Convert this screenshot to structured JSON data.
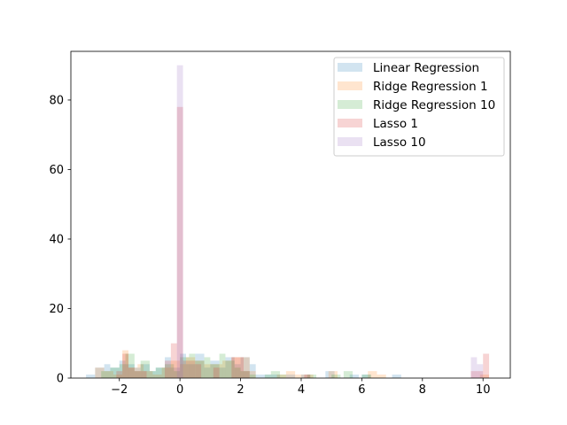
{
  "chart_data": {
    "type": "bar",
    "subtype": "overlaid-histogram",
    "title": "",
    "xlabel": "",
    "ylabel": "",
    "xlim": [
      -3.6,
      10.9
    ],
    "ylim": [
      0,
      94
    ],
    "xticks": [
      -2,
      0,
      2,
      4,
      6,
      8,
      10
    ],
    "xtick_labels": [
      "−2",
      "0",
      "2",
      "4",
      "6",
      "8",
      "10"
    ],
    "yticks": [
      0,
      20,
      40,
      60,
      80
    ],
    "ytick_labels": [
      "0",
      "20",
      "40",
      "60",
      "80"
    ],
    "grid": false,
    "legend_position": "top-right",
    "bar_opacity": 0.2,
    "series": [
      {
        "name": "Linear Regression",
        "color": "#1f77b4",
        "bins": [
          {
            "x0": -3.1,
            "x1": -2.8,
            "count": 1
          },
          {
            "x0": -2.8,
            "x1": -2.5,
            "count": 3
          },
          {
            "x0": -2.5,
            "x1": -2.3,
            "count": 4
          },
          {
            "x0": -2.3,
            "x1": -2.0,
            "count": 3
          },
          {
            "x0": -2.0,
            "x1": -1.8,
            "count": 5
          },
          {
            "x0": -1.8,
            "x1": -1.5,
            "count": 4
          },
          {
            "x0": -1.5,
            "x1": -1.3,
            "count": 3
          },
          {
            "x0": -1.3,
            "x1": -1.0,
            "count": 4
          },
          {
            "x0": -1.0,
            "x1": -0.8,
            "count": 2
          },
          {
            "x0": -0.8,
            "x1": -0.5,
            "count": 3
          },
          {
            "x0": -0.5,
            "x1": -0.3,
            "count": 6
          },
          {
            "x0": -0.3,
            "x1": 0.0,
            "count": 3
          },
          {
            "x0": 0.0,
            "x1": 0.2,
            "count": 7
          },
          {
            "x0": 0.2,
            "x1": 0.5,
            "count": 4
          },
          {
            "x0": 0.5,
            "x1": 0.8,
            "count": 7
          },
          {
            "x0": 0.8,
            "x1": 1.0,
            "count": 3
          },
          {
            "x0": 1.0,
            "x1": 1.3,
            "count": 5
          },
          {
            "x0": 1.3,
            "x1": 1.5,
            "count": 3
          },
          {
            "x0": 1.5,
            "x1": 1.8,
            "count": 6
          },
          {
            "x0": 1.8,
            "x1": 2.0,
            "count": 4
          },
          {
            "x0": 2.0,
            "x1": 2.3,
            "count": 6
          },
          {
            "x0": 2.3,
            "x1": 2.5,
            "count": 4
          },
          {
            "x0": 2.5,
            "x1": 2.8,
            "count": 1
          },
          {
            "x0": 2.8,
            "x1": 3.0,
            "count": 1
          },
          {
            "x0": 3.0,
            "x1": 3.3,
            "count": 1
          },
          {
            "x0": 3.5,
            "x1": 3.8,
            "count": 1
          },
          {
            "x0": 4.0,
            "x1": 4.3,
            "count": 1
          },
          {
            "x0": 4.8,
            "x1": 5.1,
            "count": 2
          },
          {
            "x0": 5.6,
            "x1": 5.9,
            "count": 1
          },
          {
            "x0": 6.0,
            "x1": 6.3,
            "count": 1
          },
          {
            "x0": 7.0,
            "x1": 7.3,
            "count": 1
          }
        ]
      },
      {
        "name": "Ridge Regression 1",
        "color": "#ff7f0e",
        "bins": [
          {
            "x0": -2.8,
            "x1": -2.5,
            "count": 3
          },
          {
            "x0": -2.5,
            "x1": -2.2,
            "count": 2
          },
          {
            "x0": -2.2,
            "x1": -1.9,
            "count": 1
          },
          {
            "x0": -1.9,
            "x1": -1.7,
            "count": 8
          },
          {
            "x0": -1.7,
            "x1": -1.4,
            "count": 3
          },
          {
            "x0": -1.4,
            "x1": -1.2,
            "count": 4
          },
          {
            "x0": -1.2,
            "x1": -0.9,
            "count": 2
          },
          {
            "x0": -0.9,
            "x1": -0.6,
            "count": 1
          },
          {
            "x0": -0.6,
            "x1": -0.3,
            "count": 3
          },
          {
            "x0": -0.3,
            "x1": 0.0,
            "count": 5
          },
          {
            "x0": 0.0,
            "x1": 0.2,
            "count": 4
          },
          {
            "x0": 0.2,
            "x1": 0.5,
            "count": 6
          },
          {
            "x0": 0.5,
            "x1": 0.8,
            "count": 5
          },
          {
            "x0": 0.8,
            "x1": 1.1,
            "count": 4
          },
          {
            "x0": 1.1,
            "x1": 1.4,
            "count": 4
          },
          {
            "x0": 1.4,
            "x1": 1.7,
            "count": 5
          },
          {
            "x0": 1.7,
            "x1": 2.0,
            "count": 6
          },
          {
            "x0": 2.0,
            "x1": 2.3,
            "count": 6
          },
          {
            "x0": 2.3,
            "x1": 2.5,
            "count": 2
          },
          {
            "x0": 3.2,
            "x1": 3.5,
            "count": 1
          },
          {
            "x0": 3.5,
            "x1": 3.8,
            "count": 2
          },
          {
            "x0": 3.8,
            "x1": 4.1,
            "count": 1
          },
          {
            "x0": 4.1,
            "x1": 4.4,
            "count": 1
          },
          {
            "x0": 4.9,
            "x1": 5.2,
            "count": 2
          },
          {
            "x0": 6.2,
            "x1": 6.5,
            "count": 2
          },
          {
            "x0": 6.5,
            "x1": 6.8,
            "count": 1
          },
          {
            "x0": 9.9,
            "x1": 10.2,
            "count": 1
          }
        ]
      },
      {
        "name": "Ridge Regression 10",
        "color": "#2ca02c",
        "bins": [
          {
            "x0": -2.6,
            "x1": -2.3,
            "count": 2
          },
          {
            "x0": -2.3,
            "x1": -2.0,
            "count": 3
          },
          {
            "x0": -2.0,
            "x1": -1.8,
            "count": 4
          },
          {
            "x0": -1.8,
            "x1": -1.5,
            "count": 7
          },
          {
            "x0": -1.5,
            "x1": -1.3,
            "count": 2
          },
          {
            "x0": -1.3,
            "x1": -1.0,
            "count": 5
          },
          {
            "x0": -1.0,
            "x1": -0.8,
            "count": 2
          },
          {
            "x0": -0.8,
            "x1": -0.5,
            "count": 3
          },
          {
            "x0": -0.5,
            "x1": -0.2,
            "count": 4
          },
          {
            "x0": -0.2,
            "x1": 0.0,
            "count": 2
          },
          {
            "x0": 0.0,
            "x1": 0.3,
            "count": 6
          },
          {
            "x0": 0.3,
            "x1": 0.5,
            "count": 7
          },
          {
            "x0": 0.5,
            "x1": 0.8,
            "count": 5
          },
          {
            "x0": 0.8,
            "x1": 1.0,
            "count": 6
          },
          {
            "x0": 1.0,
            "x1": 1.3,
            "count": 4
          },
          {
            "x0": 1.3,
            "x1": 1.5,
            "count": 7
          },
          {
            "x0": 1.5,
            "x1": 1.8,
            "count": 5
          },
          {
            "x0": 1.8,
            "x1": 2.0,
            "count": 3
          },
          {
            "x0": 2.0,
            "x1": 2.3,
            "count": 2
          },
          {
            "x0": 2.3,
            "x1": 2.5,
            "count": 1
          },
          {
            "x0": 2.8,
            "x1": 3.0,
            "count": 1
          },
          {
            "x0": 3.0,
            "x1": 3.3,
            "count": 2
          },
          {
            "x0": 3.3,
            "x1": 3.5,
            "count": 1
          },
          {
            "x0": 4.2,
            "x1": 4.5,
            "count": 1
          },
          {
            "x0": 5.0,
            "x1": 5.3,
            "count": 1
          },
          {
            "x0": 5.4,
            "x1": 5.7,
            "count": 2
          },
          {
            "x0": 6.0,
            "x1": 6.3,
            "count": 1
          }
        ]
      },
      {
        "name": "Lasso 1",
        "color": "#d62728",
        "bins": [
          {
            "x0": -2.1,
            "x1": -1.9,
            "count": 2
          },
          {
            "x0": -1.9,
            "x1": -1.7,
            "count": 7
          },
          {
            "x0": -1.7,
            "x1": -1.5,
            "count": 3
          },
          {
            "x0": -1.5,
            "x1": -1.3,
            "count": 2
          },
          {
            "x0": -1.3,
            "x1": -1.1,
            "count": 2
          },
          {
            "x0": -0.5,
            "x1": -0.3,
            "count": 5
          },
          {
            "x0": -0.3,
            "x1": -0.1,
            "count": 10
          },
          {
            "x0": -0.1,
            "x1": 0.1,
            "count": 78
          },
          {
            "x0": 0.1,
            "x1": 0.3,
            "count": 5
          },
          {
            "x0": 0.3,
            "x1": 0.5,
            "count": 5
          },
          {
            "x0": 0.5,
            "x1": 0.7,
            "count": 4
          },
          {
            "x0": 1.1,
            "x1": 1.3,
            "count": 3
          },
          {
            "x0": 1.7,
            "x1": 1.9,
            "count": 6
          },
          {
            "x0": 1.9,
            "x1": 2.1,
            "count": 6
          },
          {
            "x0": 2.1,
            "x1": 2.3,
            "count": 2
          },
          {
            "x0": 4.1,
            "x1": 4.3,
            "count": 1
          },
          {
            "x0": 9.6,
            "x1": 9.8,
            "count": 2
          },
          {
            "x0": 9.8,
            "x1": 10.0,
            "count": 2
          },
          {
            "x0": 10.0,
            "x1": 10.2,
            "count": 7
          }
        ]
      },
      {
        "name": "Lasso 10",
        "color": "#9467bd",
        "bins": [
          {
            "x0": -0.1,
            "x1": 0.1,
            "count": 90
          },
          {
            "x0": 9.6,
            "x1": 9.8,
            "count": 6
          },
          {
            "x0": 9.8,
            "x1": 10.0,
            "count": 4
          }
        ]
      }
    ]
  }
}
